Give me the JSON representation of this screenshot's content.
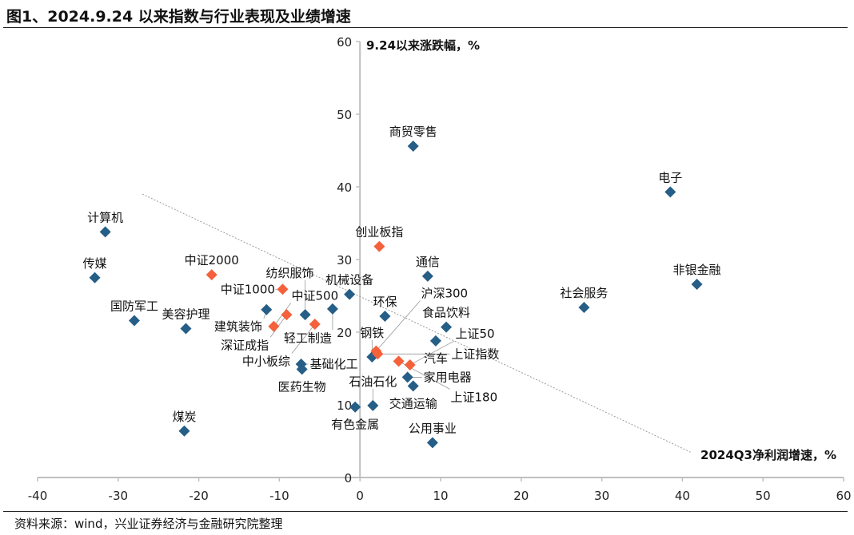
{
  "header": {
    "title": "图1、2024.9.24 以来指数与行业表现及业绩增速"
  },
  "footer": {
    "source": "资料来源：wind，兴业证券经济与金融研究院整理"
  },
  "chart_data": {
    "type": "scatter",
    "title": "图1、2024.9.24 以来指数与行业表现及业绩增速",
    "xlabel": "2024Q3净利润增速，%",
    "ylabel": "9.24以来涨跌幅，%",
    "xlim": [
      -40,
      60
    ],
    "ylim": [
      0,
      60
    ],
    "xticks": [
      -40,
      -30,
      -20,
      -10,
      0,
      10,
      20,
      30,
      40,
      50,
      60
    ],
    "yticks": [
      0,
      10,
      20,
      30,
      40,
      50,
      60
    ],
    "grid": false,
    "colors": {
      "industry": "#255e87",
      "index": "#f4613b",
      "trend": "#9a9a9a",
      "axis": "#bfbfbf"
    },
    "trendline": {
      "x": [
        -27,
        41
      ],
      "y": [
        39,
        3.5
      ]
    },
    "series": [
      {
        "group": "industry",
        "points": [
          {
            "label": "计算机",
            "x": -31.6,
            "y": 33.8
          },
          {
            "label": "传媒",
            "x": -32.9,
            "y": 27.5
          },
          {
            "label": "国防军工",
            "x": -28.0,
            "y": 21.6
          },
          {
            "label": "美容护理",
            "x": -21.6,
            "y": 20.5
          },
          {
            "label": "煤炭",
            "x": -21.8,
            "y": 6.4
          },
          {
            "label": "商贸零售",
            "x": 6.6,
            "y": 45.6
          },
          {
            "label": "电子",
            "x": 38.5,
            "y": 39.3
          },
          {
            "label": "非银金融",
            "x": 41.8,
            "y": 26.6
          },
          {
            "label": "社会服务",
            "x": 27.8,
            "y": 23.4
          },
          {
            "label": "通信",
            "x": 8.4,
            "y": 27.7
          },
          {
            "label": "环保",
            "x": 3.1,
            "y": 22.2
          },
          {
            "label": "食品饮料",
            "x": 10.7,
            "y": 20.7
          },
          {
            "label": "汽车",
            "x": 9.4,
            "y": 18.8
          },
          {
            "label": "机械设备",
            "x": -1.3,
            "y": 25.2
          },
          {
            "label": "轻工制造",
            "x": -3.4,
            "y": 23.2
          },
          {
            "label": "纺织服饰",
            "x": -6.8,
            "y": 22.4
          },
          {
            "label": "建筑装饰",
            "x": -11.6,
            "y": 23.1
          },
          {
            "label": "基础化工",
            "x": -7.3,
            "y": 15.6
          },
          {
            "label": "医药生物",
            "x": -7.2,
            "y": 14.9
          },
          {
            "label": "钢铁",
            "x": 1.5,
            "y": 16.6
          },
          {
            "label": "家用电器",
            "x": 5.9,
            "y": 13.8
          },
          {
            "label": "交通运输",
            "x": 6.6,
            "y": 12.6
          },
          {
            "label": "有色金属",
            "x": -0.6,
            "y": 9.7
          },
          {
            "label": "石油石化",
            "x": 1.6,
            "y": 9.9
          },
          {
            "label": "公用事业",
            "x": 9.0,
            "y": 4.8
          }
        ]
      },
      {
        "group": "index",
        "points": [
          {
            "label": "中证2000",
            "x": -18.4,
            "y": 27.9
          },
          {
            "label": "创业板指",
            "x": 2.4,
            "y": 31.8
          },
          {
            "label": "中证1000",
            "x": -9.6,
            "y": 25.9
          },
          {
            "label": "深证成指",
            "x": -9.1,
            "y": 22.4
          },
          {
            "label": "中证500",
            "x": -10.7,
            "y": 20.8
          },
          {
            "label": "中小板综",
            "x": -5.6,
            "y": 21.1
          },
          {
            "label": "沪深300",
            "x": 2.0,
            "y": 17.4
          },
          {
            "label": "上证指数",
            "x": 2.2,
            "y": 17.0
          },
          {
            "label": "上证180",
            "x": 4.8,
            "y": 16.0
          },
          {
            "label": "上证50",
            "x": 6.2,
            "y": 15.5
          }
        ]
      }
    ]
  }
}
